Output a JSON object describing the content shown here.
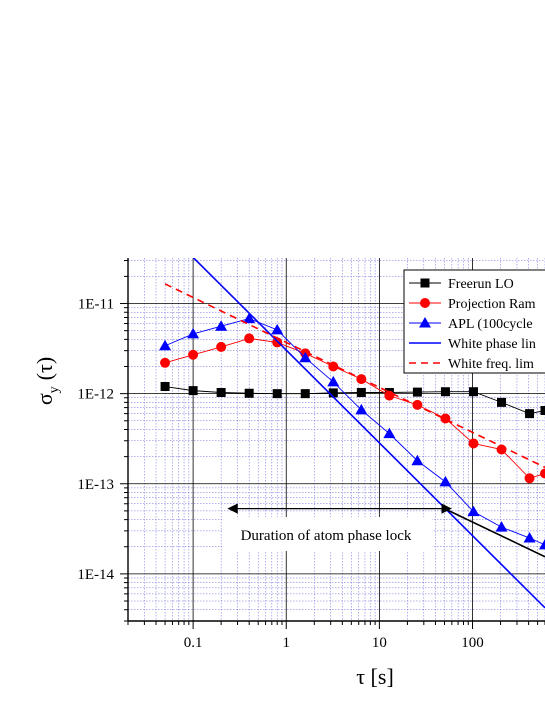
{
  "chart_data": {
    "type": "line",
    "xlabel": "τ [s]",
    "ylabel_main": "σ",
    "ylabel_sub": "y",
    "ylabel_arg": "(τ)",
    "x_scale": "log",
    "y_scale": "log",
    "xlim": [
      0.02,
      600
    ],
    "ylim": [
      3e-15,
      3.2e-11
    ],
    "x_ticks": [
      {
        "value": 0.1,
        "label": "0.1"
      },
      {
        "value": 1,
        "label": "1"
      },
      {
        "value": 10,
        "label": "10"
      },
      {
        "value": 100,
        "label": "100"
      }
    ],
    "y_ticks": [
      {
        "value": 1e-11,
        "label": "1E-11"
      },
      {
        "value": 1e-12,
        "label": "1E-12"
      },
      {
        "value": 1e-13,
        "label": "1E-13"
      },
      {
        "value": 1e-14,
        "label": "1E-14"
      }
    ],
    "grid": true,
    "legend_position": "top-right",
    "series": [
      {
        "name": "Freerun LO",
        "kind": "markers-line",
        "marker": "square",
        "color": "#000000",
        "x": [
          0.05,
          0.1,
          0.2,
          0.4,
          0.8,
          1.6,
          3.2,
          6.4,
          12.8,
          25.6,
          51.2,
          102.4,
          204.8,
          409.6,
          600
        ],
        "y": [
          1.2e-12,
          1.08e-12,
          1.03e-12,
          1.01e-12,
          1e-12,
          1e-12,
          1.02e-12,
          1.03e-12,
          1.03e-12,
          1.04e-12,
          1.05e-12,
          1.05e-12,
          8e-13,
          6e-13,
          6.5e-13
        ]
      },
      {
        "name": "Projection Ram",
        "kind": "markers-line",
        "marker": "circle",
        "color": "#ff0000",
        "x": [
          0.05,
          0.1,
          0.2,
          0.4,
          0.8,
          1.6,
          3.2,
          6.4,
          12.8,
          25.6,
          51.2,
          102.4,
          204.8,
          409.6,
          600
        ],
        "y": [
          2.2e-12,
          2.7e-12,
          3.3e-12,
          4.1e-12,
          3.7e-12,
          2.8e-12,
          2e-12,
          1.45e-12,
          9.5e-13,
          7.5e-13,
          5.3e-13,
          2.8e-13,
          2.4e-13,
          1.15e-13,
          1.3e-13
        ]
      },
      {
        "name": "APL (100cycle",
        "kind": "markers-line",
        "marker": "triangle",
        "color": "#0000ff",
        "x": [
          0.05,
          0.1,
          0.2,
          0.4,
          0.8,
          1.6,
          3.2,
          6.4,
          12.8,
          25.6,
          51.2,
          102.4,
          204.8,
          409.6,
          600
        ],
        "y": [
          3.4e-12,
          4.6e-12,
          5.6e-12,
          6.8e-12,
          5.1e-12,
          2.5e-12,
          1.35e-12,
          6.6e-13,
          3.6e-13,
          1.8e-13,
          1.05e-13,
          4.9e-14,
          3.3e-14,
          2.5e-14,
          2.1e-14
        ]
      },
      {
        "name": "White phase lin",
        "kind": "line",
        "dash": "solid",
        "color": "#0000ff",
        "x": [
          0.1,
          600
        ],
        "y": [
          3.25e-11,
          4.2e-15
        ]
      },
      {
        "name": "White freq. lim",
        "kind": "line",
        "dash": "dashed",
        "color": "#ff0000",
        "x": [
          0.05,
          600
        ],
        "y": [
          1.65e-11,
          1.52e-13
        ]
      },
      {
        "name": "",
        "kind": "line",
        "dash": "solid",
        "color": "#000000",
        "x": [
          50,
          600
        ],
        "y": [
          5.3e-14,
          1.55e-14
        ]
      }
    ],
    "annotations": [
      {
        "text": "Duration of atom phase lock",
        "arrow_from_x": 0.28,
        "arrow_to_x": 50,
        "arrow_y": 5.3e-14,
        "text_x": 3.9,
        "text_y": 2.4e-14
      }
    ]
  }
}
